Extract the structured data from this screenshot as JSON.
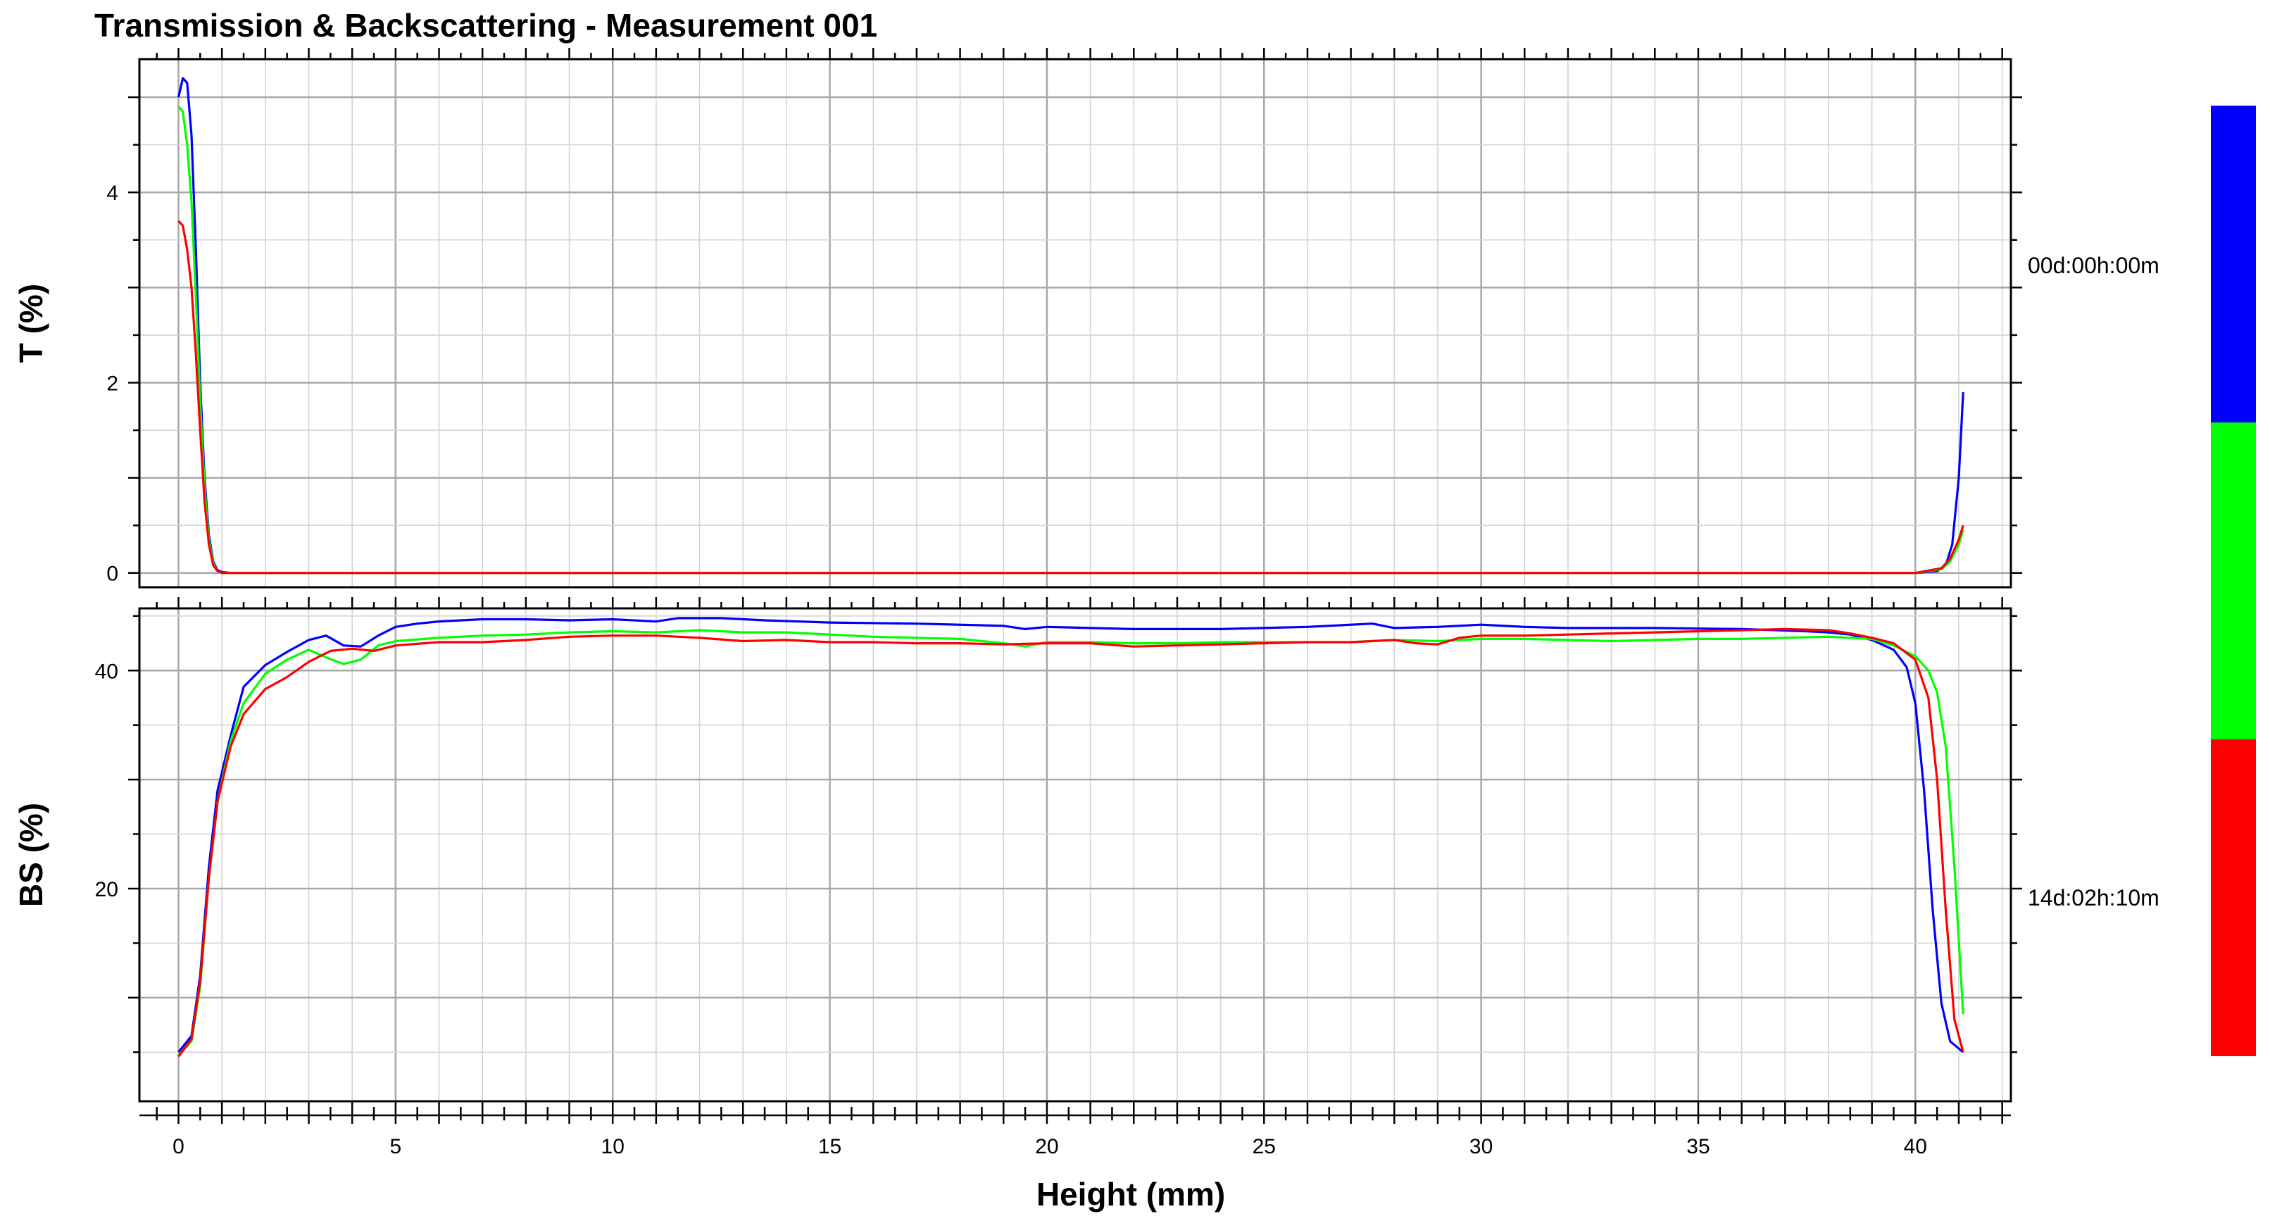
{
  "title": "Transmission & Backscattering - Measurement 001",
  "colors": {
    "blue": "#0000ff",
    "green": "#00ff00",
    "red": "#ff0000",
    "grid": "#c8c8c8",
    "axis": "#000000"
  },
  "chart_data": [
    {
      "type": "line",
      "panel": "transmission",
      "ylabel": "T (%)",
      "xlabel": "",
      "xlim": [
        -0.9,
        42.2
      ],
      "ylim": [
        -0.15,
        5.4
      ],
      "x_ticks": [
        0,
        5,
        10,
        15,
        20,
        25,
        30,
        35,
        40
      ],
      "y_ticks": [
        0,
        2,
        4
      ],
      "grid": true,
      "series": [
        {
          "color": "blue",
          "points": [
            [
              0.0,
              5.0
            ],
            [
              0.1,
              5.2
            ],
            [
              0.2,
              5.15
            ],
            [
              0.3,
              4.6
            ],
            [
              0.4,
              3.4
            ],
            [
              0.5,
              2.0
            ],
            [
              0.6,
              1.0
            ],
            [
              0.7,
              0.4
            ],
            [
              0.8,
              0.12
            ],
            [
              0.9,
              0.03
            ],
            [
              1.0,
              0.01
            ],
            [
              1.2,
              0.0
            ],
            [
              5,
              0.0
            ],
            [
              10,
              0.0
            ],
            [
              15,
              0.0
            ],
            [
              20,
              0.0
            ],
            [
              25,
              0.0
            ],
            [
              30,
              0.0
            ],
            [
              35,
              0.0
            ],
            [
              40,
              0.0
            ],
            [
              40.5,
              0.02
            ],
            [
              40.7,
              0.08
            ],
            [
              40.85,
              0.3
            ],
            [
              41.0,
              1.0
            ],
            [
              41.1,
              1.9
            ]
          ]
        },
        {
          "color": "green",
          "points": [
            [
              0.0,
              4.9
            ],
            [
              0.1,
              4.85
            ],
            [
              0.2,
              4.5
            ],
            [
              0.3,
              3.9
            ],
            [
              0.4,
              2.9
            ],
            [
              0.5,
              1.8
            ],
            [
              0.6,
              0.9
            ],
            [
              0.7,
              0.35
            ],
            [
              0.8,
              0.1
            ],
            [
              0.9,
              0.02
            ],
            [
              1.0,
              0.0
            ],
            [
              5,
              0.0
            ],
            [
              10,
              0.0
            ],
            [
              15,
              0.0
            ],
            [
              20,
              0.0
            ],
            [
              25,
              0.0
            ],
            [
              30,
              0.0
            ],
            [
              35,
              0.0
            ],
            [
              40,
              0.0
            ],
            [
              40.6,
              0.04
            ],
            [
              40.8,
              0.12
            ],
            [
              41.0,
              0.3
            ],
            [
              41.1,
              0.45
            ]
          ]
        },
        {
          "color": "red",
          "points": [
            [
              0.0,
              3.7
            ],
            [
              0.1,
              3.65
            ],
            [
              0.2,
              3.4
            ],
            [
              0.3,
              3.0
            ],
            [
              0.4,
              2.3
            ],
            [
              0.5,
              1.5
            ],
            [
              0.6,
              0.75
            ],
            [
              0.7,
              0.3
            ],
            [
              0.8,
              0.08
            ],
            [
              0.9,
              0.02
            ],
            [
              1.0,
              0.0
            ],
            [
              5,
              0.0
            ],
            [
              10,
              0.0
            ],
            [
              15,
              0.0
            ],
            [
              20,
              0.0
            ],
            [
              25,
              0.0
            ],
            [
              30,
              0.0
            ],
            [
              35,
              0.0
            ],
            [
              40,
              0.0
            ],
            [
              40.6,
              0.05
            ],
            [
              40.8,
              0.15
            ],
            [
              41.0,
              0.35
            ],
            [
              41.1,
              0.5
            ]
          ]
        }
      ]
    },
    {
      "type": "line",
      "panel": "backscattering",
      "ylabel": "BS (%)",
      "xlabel": "Height (mm)",
      "xlim": [
        -0.9,
        42.2
      ],
      "ylim": [
        0.5,
        45.7
      ],
      "x_ticks": [
        0,
        5,
        10,
        15,
        20,
        25,
        30,
        35,
        40
      ],
      "y_ticks": [
        20,
        40
      ],
      "grid": true,
      "series": [
        {
          "color": "blue",
          "points": [
            [
              0.0,
              5.0
            ],
            [
              0.3,
              6.5
            ],
            [
              0.5,
              12
            ],
            [
              0.7,
              22
            ],
            [
              0.9,
              29
            ],
            [
              1.2,
              34
            ],
            [
              1.5,
              38.5
            ],
            [
              2.0,
              40.5
            ],
            [
              2.5,
              41.7
            ],
            [
              3.0,
              42.8
            ],
            [
              3.4,
              43.2
            ],
            [
              3.8,
              42.3
            ],
            [
              4.2,
              42.2
            ],
            [
              4.6,
              43.2
            ],
            [
              5.0,
              44.0
            ],
            [
              5.5,
              44.3
            ],
            [
              6.0,
              44.5
            ],
            [
              7.0,
              44.7
            ],
            [
              8.0,
              44.7
            ],
            [
              9.0,
              44.6
            ],
            [
              10.0,
              44.7
            ],
            [
              11.0,
              44.5
            ],
            [
              11.5,
              44.8
            ],
            [
              12.5,
              44.8
            ],
            [
              13.5,
              44.6
            ],
            [
              15.0,
              44.4
            ],
            [
              17.0,
              44.3
            ],
            [
              19.0,
              44.1
            ],
            [
              19.5,
              43.8
            ],
            [
              20.0,
              44.0
            ],
            [
              21.0,
              43.9
            ],
            [
              22.0,
              43.8
            ],
            [
              24.0,
              43.8
            ],
            [
              26.0,
              44.0
            ],
            [
              27.5,
              44.3
            ],
            [
              28.0,
              43.9
            ],
            [
              29.0,
              44.0
            ],
            [
              30.0,
              44.2
            ],
            [
              31.0,
              44.0
            ],
            [
              32.0,
              43.9
            ],
            [
              34.0,
              43.9
            ],
            [
              36.0,
              43.8
            ],
            [
              37.5,
              43.6
            ],
            [
              38.0,
              43.5
            ],
            [
              38.5,
              43.3
            ],
            [
              39.0,
              42.8
            ],
            [
              39.5,
              41.9
            ],
            [
              39.8,
              40.3
            ],
            [
              40.0,
              37.0
            ],
            [
              40.2,
              29.0
            ],
            [
              40.4,
              18.0
            ],
            [
              40.6,
              9.5
            ],
            [
              40.8,
              6.0
            ],
            [
              41.1,
              5.0
            ]
          ]
        },
        {
          "color": "green",
          "points": [
            [
              0.0,
              4.7
            ],
            [
              0.3,
              6.0
            ],
            [
              0.5,
              11
            ],
            [
              0.7,
              21
            ],
            [
              0.9,
              28
            ],
            [
              1.2,
              33.5
            ],
            [
              1.5,
              37
            ],
            [
              2.0,
              39.7
            ],
            [
              2.5,
              41.0
            ],
            [
              3.0,
              41.9
            ],
            [
              3.4,
              41.2
            ],
            [
              3.8,
              40.6
            ],
            [
              4.2,
              41.0
            ],
            [
              4.6,
              42.3
            ],
            [
              5.0,
              42.7
            ],
            [
              6.0,
              43.0
            ],
            [
              7.0,
              43.2
            ],
            [
              8.0,
              43.3
            ],
            [
              9.0,
              43.5
            ],
            [
              10.0,
              43.6
            ],
            [
              11.0,
              43.5
            ],
            [
              12.0,
              43.7
            ],
            [
              13.0,
              43.5
            ],
            [
              14.0,
              43.5
            ],
            [
              15.0,
              43.3
            ],
            [
              16.0,
              43.1
            ],
            [
              17.0,
              43.0
            ],
            [
              18.0,
              42.9
            ],
            [
              19.0,
              42.5
            ],
            [
              19.5,
              42.2
            ],
            [
              20.0,
              42.6
            ],
            [
              21.0,
              42.6
            ],
            [
              22.0,
              42.5
            ],
            [
              23.0,
              42.5
            ],
            [
              24.0,
              42.6
            ],
            [
              25.0,
              42.6
            ],
            [
              26.0,
              42.6
            ],
            [
              27.0,
              42.6
            ],
            [
              28.0,
              42.8
            ],
            [
              29.0,
              42.7
            ],
            [
              30.0,
              42.9
            ],
            [
              31.0,
              42.9
            ],
            [
              32.0,
              42.8
            ],
            [
              33.0,
              42.7
            ],
            [
              34.0,
              42.8
            ],
            [
              35.0,
              42.9
            ],
            [
              36.0,
              42.9
            ],
            [
              37.0,
              43.0
            ],
            [
              38.0,
              43.1
            ],
            [
              39.0,
              42.9
            ],
            [
              39.5,
              42.3
            ],
            [
              40.0,
              41.3
            ],
            [
              40.3,
              40.0
            ],
            [
              40.5,
              38.0
            ],
            [
              40.7,
              33.0
            ],
            [
              40.9,
              22.0
            ],
            [
              41.1,
              8.5
            ]
          ]
        },
        {
          "color": "red",
          "points": [
            [
              0.0,
              4.6
            ],
            [
              0.3,
              6.2
            ],
            [
              0.5,
              11.5
            ],
            [
              0.7,
              21
            ],
            [
              0.9,
              28
            ],
            [
              1.2,
              33
            ],
            [
              1.5,
              36
            ],
            [
              2.0,
              38.3
            ],
            [
              2.5,
              39.4
            ],
            [
              3.0,
              40.8
            ],
            [
              3.5,
              41.8
            ],
            [
              4.0,
              42.0
            ],
            [
              4.5,
              41.8
            ],
            [
              5.0,
              42.3
            ],
            [
              6.0,
              42.6
            ],
            [
              7.0,
              42.6
            ],
            [
              8.0,
              42.8
            ],
            [
              9.0,
              43.1
            ],
            [
              10.0,
              43.2
            ],
            [
              11.0,
              43.2
            ],
            [
              12.0,
              43.0
            ],
            [
              13.0,
              42.7
            ],
            [
              14.0,
              42.8
            ],
            [
              15.0,
              42.6
            ],
            [
              16.0,
              42.6
            ],
            [
              17.0,
              42.5
            ],
            [
              18.0,
              42.5
            ],
            [
              19.0,
              42.4
            ],
            [
              20.0,
              42.5
            ],
            [
              21.0,
              42.5
            ],
            [
              22.0,
              42.2
            ],
            [
              23.0,
              42.3
            ],
            [
              24.0,
              42.4
            ],
            [
              25.0,
              42.5
            ],
            [
              26.0,
              42.6
            ],
            [
              27.0,
              42.6
            ],
            [
              28.0,
              42.8
            ],
            [
              28.5,
              42.5
            ],
            [
              29.0,
              42.4
            ],
            [
              29.5,
              43.0
            ],
            [
              30.0,
              43.2
            ],
            [
              31.0,
              43.2
            ],
            [
              32.0,
              43.3
            ],
            [
              33.0,
              43.4
            ],
            [
              34.0,
              43.5
            ],
            [
              35.0,
              43.6
            ],
            [
              36.0,
              43.7
            ],
            [
              37.0,
              43.8
            ],
            [
              38.0,
              43.7
            ],
            [
              38.5,
              43.4
            ],
            [
              39.0,
              43.0
            ],
            [
              39.5,
              42.5
            ],
            [
              40.0,
              41.0
            ],
            [
              40.3,
              37.5
            ],
            [
              40.5,
              30.0
            ],
            [
              40.7,
              18.0
            ],
            [
              40.9,
              8.0
            ],
            [
              41.1,
              5.0
            ]
          ]
        }
      ]
    }
  ],
  "legend": {
    "top_label": "00d:00h:00m",
    "bottom_label": "14d:02h:10m",
    "segments": [
      "blue",
      "green",
      "red"
    ]
  }
}
